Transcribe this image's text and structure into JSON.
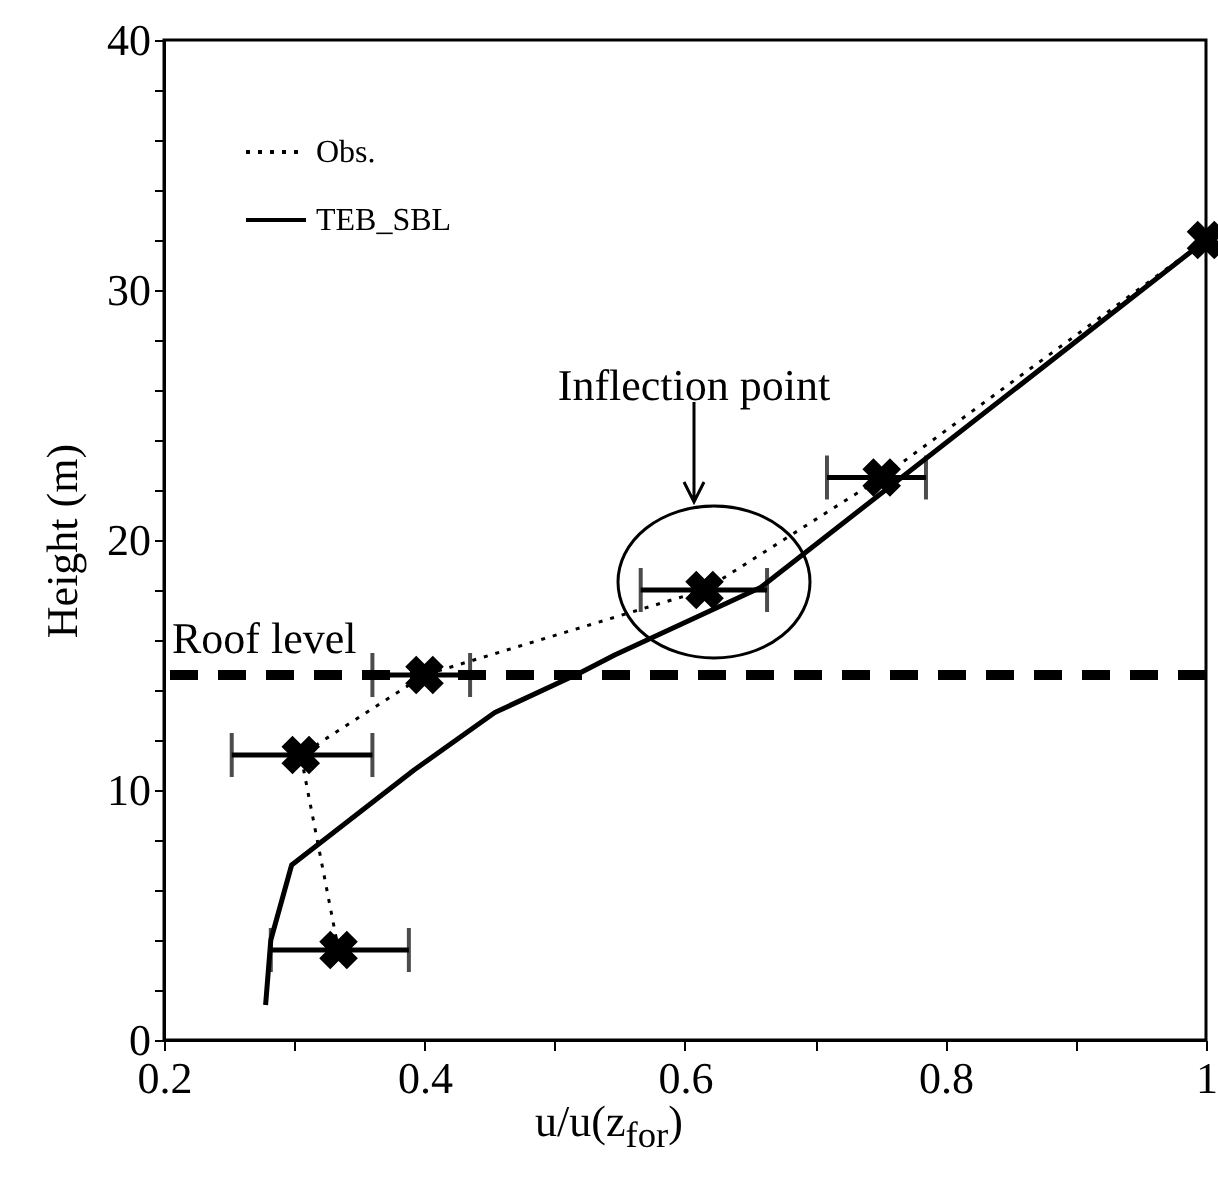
{
  "chart_data": {
    "type": "line",
    "xlabel": "u/u(z$_{for}$)",
    "ylabel": "Height (m)",
    "xlim": [
      0.2,
      1
    ],
    "ylim": [
      0,
      40
    ],
    "xticks": [
      0.2,
      {
        "value": 0.3,
        "label": null
      },
      0.4,
      {
        "value": 0.5,
        "label": null
      },
      0.6,
      {
        "value": 0.7,
        "label": null
      },
      0.8,
      {
        "value": 0.9,
        "label": null
      },
      1
    ],
    "yticks": [
      0,
      {
        "value": 2,
        "label": null
      },
      {
        "value": 4,
        "label": null
      },
      {
        "value": 6,
        "label": null
      },
      {
        "value": 8,
        "label": null
      },
      10,
      {
        "value": 12,
        "label": null
      },
      {
        "value": 14,
        "label": null
      },
      {
        "value": 16,
        "label": null
      },
      {
        "value": 18,
        "label": null
      },
      20,
      {
        "value": 22,
        "label": null
      },
      {
        "value": 24,
        "label": null
      },
      {
        "value": 26,
        "label": null
      },
      {
        "value": 28,
        "label": null
      },
      30,
      {
        "value": 32,
        "label": null
      },
      {
        "value": 34,
        "label": null
      },
      {
        "value": 36,
        "label": null
      },
      {
        "value": 38,
        "label": null
      },
      40
    ],
    "series": [
      {
        "name": "Obs.",
        "color": "#000000",
        "marker": "cross",
        "line_style": "dotted",
        "x": [
          0.334,
          0.305,
          0.4,
          0.615,
          0.751,
          1.0
        ],
        "values": [
          3.6,
          11.4,
          14.6,
          18.0,
          22.5,
          32.0
        ],
        "xerrors": [
          [
            0.282,
            0.388
          ],
          [
            0.252,
            0.36
          ],
          [
            0.36,
            0.435
          ],
          [
            0.566,
            0.663
          ],
          [
            0.709,
            0.785
          ],
          null
        ]
      },
      {
        "name": "TEB_SBL",
        "color": "#000000",
        "marker": "none",
        "line_style": "solid",
        "x": [
          0.278,
          0.282,
          0.298,
          0.392,
          0.454,
          0.52,
          0.546,
          0.658,
          1.0
        ],
        "values": [
          1.4,
          4.0,
          7.0,
          10.8,
          13.1,
          14.7,
          15.4,
          18.1,
          32.0
        ]
      }
    ],
    "ref_lines": [
      {
        "axis": "y",
        "value": 14.6,
        "label": "Roof level",
        "line_style": "dashed",
        "color": "#000000"
      }
    ],
    "annotations": [
      "Inflection point"
    ],
    "legend": "top left",
    "grid": false
  }
}
